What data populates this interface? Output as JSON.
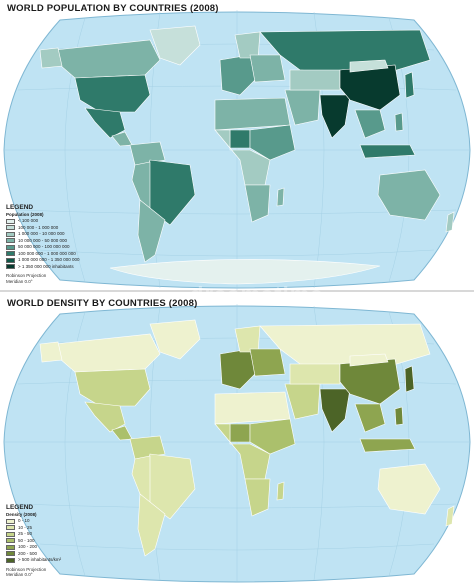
{
  "maps": [
    {
      "title": "WORLD POPULATION BY COUNTRIES (2008)",
      "legend": {
        "heading": "LEGEND",
        "subheading": "Population (2008)",
        "classes": [
          {
            "label": "< 100 000",
            "color": "#e4f1ee"
          },
          {
            "label": "100 000 - 1 000 000",
            "color": "#c6e0da"
          },
          {
            "label": "1 000 000 - 10 000 000",
            "color": "#a3cbc2"
          },
          {
            "label": "10 000 000 - 50 000 000",
            "color": "#7db3a7"
          },
          {
            "label": "50 000 000 - 100 000 000",
            "color": "#589a8c"
          },
          {
            "label": "100 000 000 - 1 000 000 000",
            "color": "#2f7a6a"
          },
          {
            "label": "1 000 000 000 - 1 350 000 000",
            "color": "#0f5747"
          },
          {
            "label": "> 1 350 000 000 inhabitants",
            "color": "#073a2e"
          }
        ],
        "projection": "Robinson Projection",
        "meridian": "Meridian 0.0°"
      }
    },
    {
      "title": "WORLD DENSITY BY COUNTRIES (2008)",
      "legend": {
        "heading": "LEGEND",
        "subheading": "Density (2008)",
        "classes": [
          {
            "label": "0 - 10",
            "color": "#eef2cf"
          },
          {
            "label": "10 - 25",
            "color": "#dde6ad"
          },
          {
            "label": "25 - 50",
            "color": "#c6d58b"
          },
          {
            "label": "50 - 100",
            "color": "#abc06c"
          },
          {
            "label": "100 - 200",
            "color": "#8ea550"
          },
          {
            "label": "200 - 500",
            "color": "#6f883a"
          },
          {
            "label": "> 500 inhabitants/km²",
            "color": "#4c6427"
          }
        ],
        "projection": "Robinson Projection",
        "meridian": "Meridian 0.0°"
      }
    }
  ],
  "colors": {
    "ocean": "#bfe3f3",
    "ocean_outline": "#7fb7d3",
    "graticule": "#9fcde2",
    "country_border": "#ffffff"
  },
  "watermark": "dreamstime."
}
